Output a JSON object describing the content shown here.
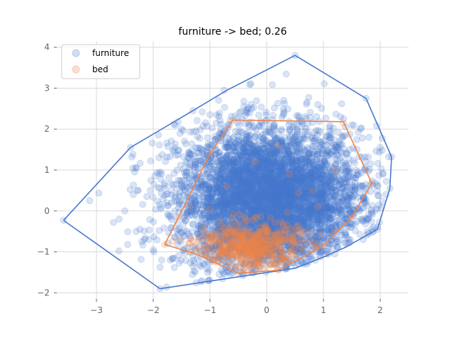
{
  "chart_data": {
    "type": "scatter",
    "title": "furniture -> bed; 0.26",
    "xlabel": "",
    "ylabel": "",
    "xlim": [
      -3.7,
      2.5
    ],
    "ylim": [
      -2.15,
      4.15
    ],
    "x_ticks": [
      -3,
      -2,
      -1,
      0,
      1,
      2
    ],
    "y_ticks": [
      -2,
      -1,
      0,
      1,
      2,
      3,
      4
    ],
    "x_tick_labels": [
      "−3",
      "−2",
      "−1",
      "0",
      "1",
      "2"
    ],
    "y_tick_labels": [
      "−2",
      "−1",
      "0",
      "1",
      "2",
      "3",
      "4"
    ],
    "grid": true,
    "legend_position": "top-left",
    "series": [
      {
        "name": "furniture",
        "color": "#4878cf",
        "marker_alpha": 0.2,
        "cloud": {
          "n": 5200,
          "mean": [
            0.05,
            0.3
          ],
          "std": [
            0.8,
            0.85
          ]
        },
        "hull": [
          [
            -3.58,
            -0.23
          ],
          [
            -2.4,
            1.55
          ],
          [
            -1.3,
            2.45
          ],
          [
            -0.7,
            2.95
          ],
          [
            0.5,
            3.8
          ],
          [
            1.75,
            2.75
          ],
          [
            2.2,
            1.32
          ],
          [
            2.17,
            0.55
          ],
          [
            1.95,
            -0.45
          ],
          [
            1.4,
            -0.88
          ],
          [
            1.05,
            -1.1
          ],
          [
            0.5,
            -1.4
          ],
          [
            -1.88,
            -1.9
          ],
          [
            -3.58,
            -0.23
          ]
        ],
        "outliers": [
          [
            -3.58,
            -0.23
          ],
          [
            -3.12,
            0.25
          ],
          [
            -2.4,
            1.55
          ],
          [
            -2.45,
            -0.82
          ],
          [
            -2.3,
            1.05
          ],
          [
            -1.3,
            2.45
          ],
          [
            -0.75,
            2.95
          ],
          [
            0.5,
            3.8
          ],
          [
            0.1,
            3.08
          ],
          [
            1.75,
            2.75
          ],
          [
            2.2,
            1.32
          ],
          [
            2.17,
            0.55
          ],
          [
            1.95,
            -0.45
          ],
          [
            -1.88,
            -1.9
          ],
          [
            -2.6,
            -0.2
          ],
          [
            -2.7,
            -0.28
          ],
          [
            -2.2,
            -0.75
          ],
          [
            -2.05,
            0.5
          ],
          [
            -1.9,
            1.3
          ],
          [
            -1.5,
            2.0
          ],
          [
            -1.0,
            2.35
          ],
          [
            -0.4,
            2.55
          ],
          [
            0.3,
            2.7
          ],
          [
            0.9,
            2.6
          ],
          [
            1.3,
            2.3
          ],
          [
            1.5,
            2.1
          ],
          [
            1.8,
            1.8
          ],
          [
            2.0,
            1.55
          ],
          [
            2.05,
            0.9
          ],
          [
            2.1,
            0.4
          ],
          [
            1.7,
            -0.7
          ],
          [
            1.2,
            -1.05
          ],
          [
            0.7,
            -1.3
          ],
          [
            -0.2,
            -1.45
          ],
          [
            -0.8,
            -1.45
          ],
          [
            -1.3,
            -1.35
          ],
          [
            -1.7,
            -1.2
          ],
          [
            -2.0,
            -0.95
          ],
          [
            -2.3,
            -0.5
          ],
          [
            -2.5,
            0.0
          ],
          [
            -2.35,
            0.4
          ]
        ]
      },
      {
        "name": "bed",
        "color": "#ee854a",
        "marker_alpha": 0.22,
        "cloud": {
          "n": 520,
          "mean": [
            -0.3,
            -0.85
          ],
          "std": [
            0.45,
            0.3
          ]
        },
        "hull": [
          [
            -0.6,
            2.22
          ],
          [
            1.35,
            2.18
          ],
          [
            1.85,
            0.68
          ],
          [
            1.5,
            -0.15
          ],
          [
            1.0,
            -0.85
          ],
          [
            0.2,
            -1.45
          ],
          [
            -0.5,
            -1.52
          ],
          [
            -1.25,
            -1.05
          ],
          [
            -1.8,
            -0.82
          ],
          [
            -1.55,
            -0.15
          ],
          [
            -1.0,
            1.4
          ],
          [
            -0.6,
            2.22
          ]
        ],
        "outliers": [
          [
            -0.6,
            2.2
          ],
          [
            1.35,
            2.15
          ],
          [
            1.85,
            0.68
          ],
          [
            1.5,
            -0.15
          ],
          [
            -1.8,
            -0.82
          ],
          [
            -1.55,
            -0.15
          ],
          [
            -1.0,
            1.4
          ],
          [
            -0.5,
            -1.52
          ],
          [
            0.2,
            -1.45
          ],
          [
            1.0,
            -0.85
          ],
          [
            -0.2,
            1.2
          ],
          [
            0.4,
            0.9
          ],
          [
            0.8,
            0.5
          ],
          [
            -0.7,
            0.6
          ],
          [
            0.2,
            1.6
          ],
          [
            1.2,
            1.0
          ],
          [
            -0.4,
            -0.3
          ],
          [
            0.5,
            -0.4
          ],
          [
            -1.1,
            -0.4
          ],
          [
            0.9,
            0.1
          ]
        ]
      }
    ]
  }
}
